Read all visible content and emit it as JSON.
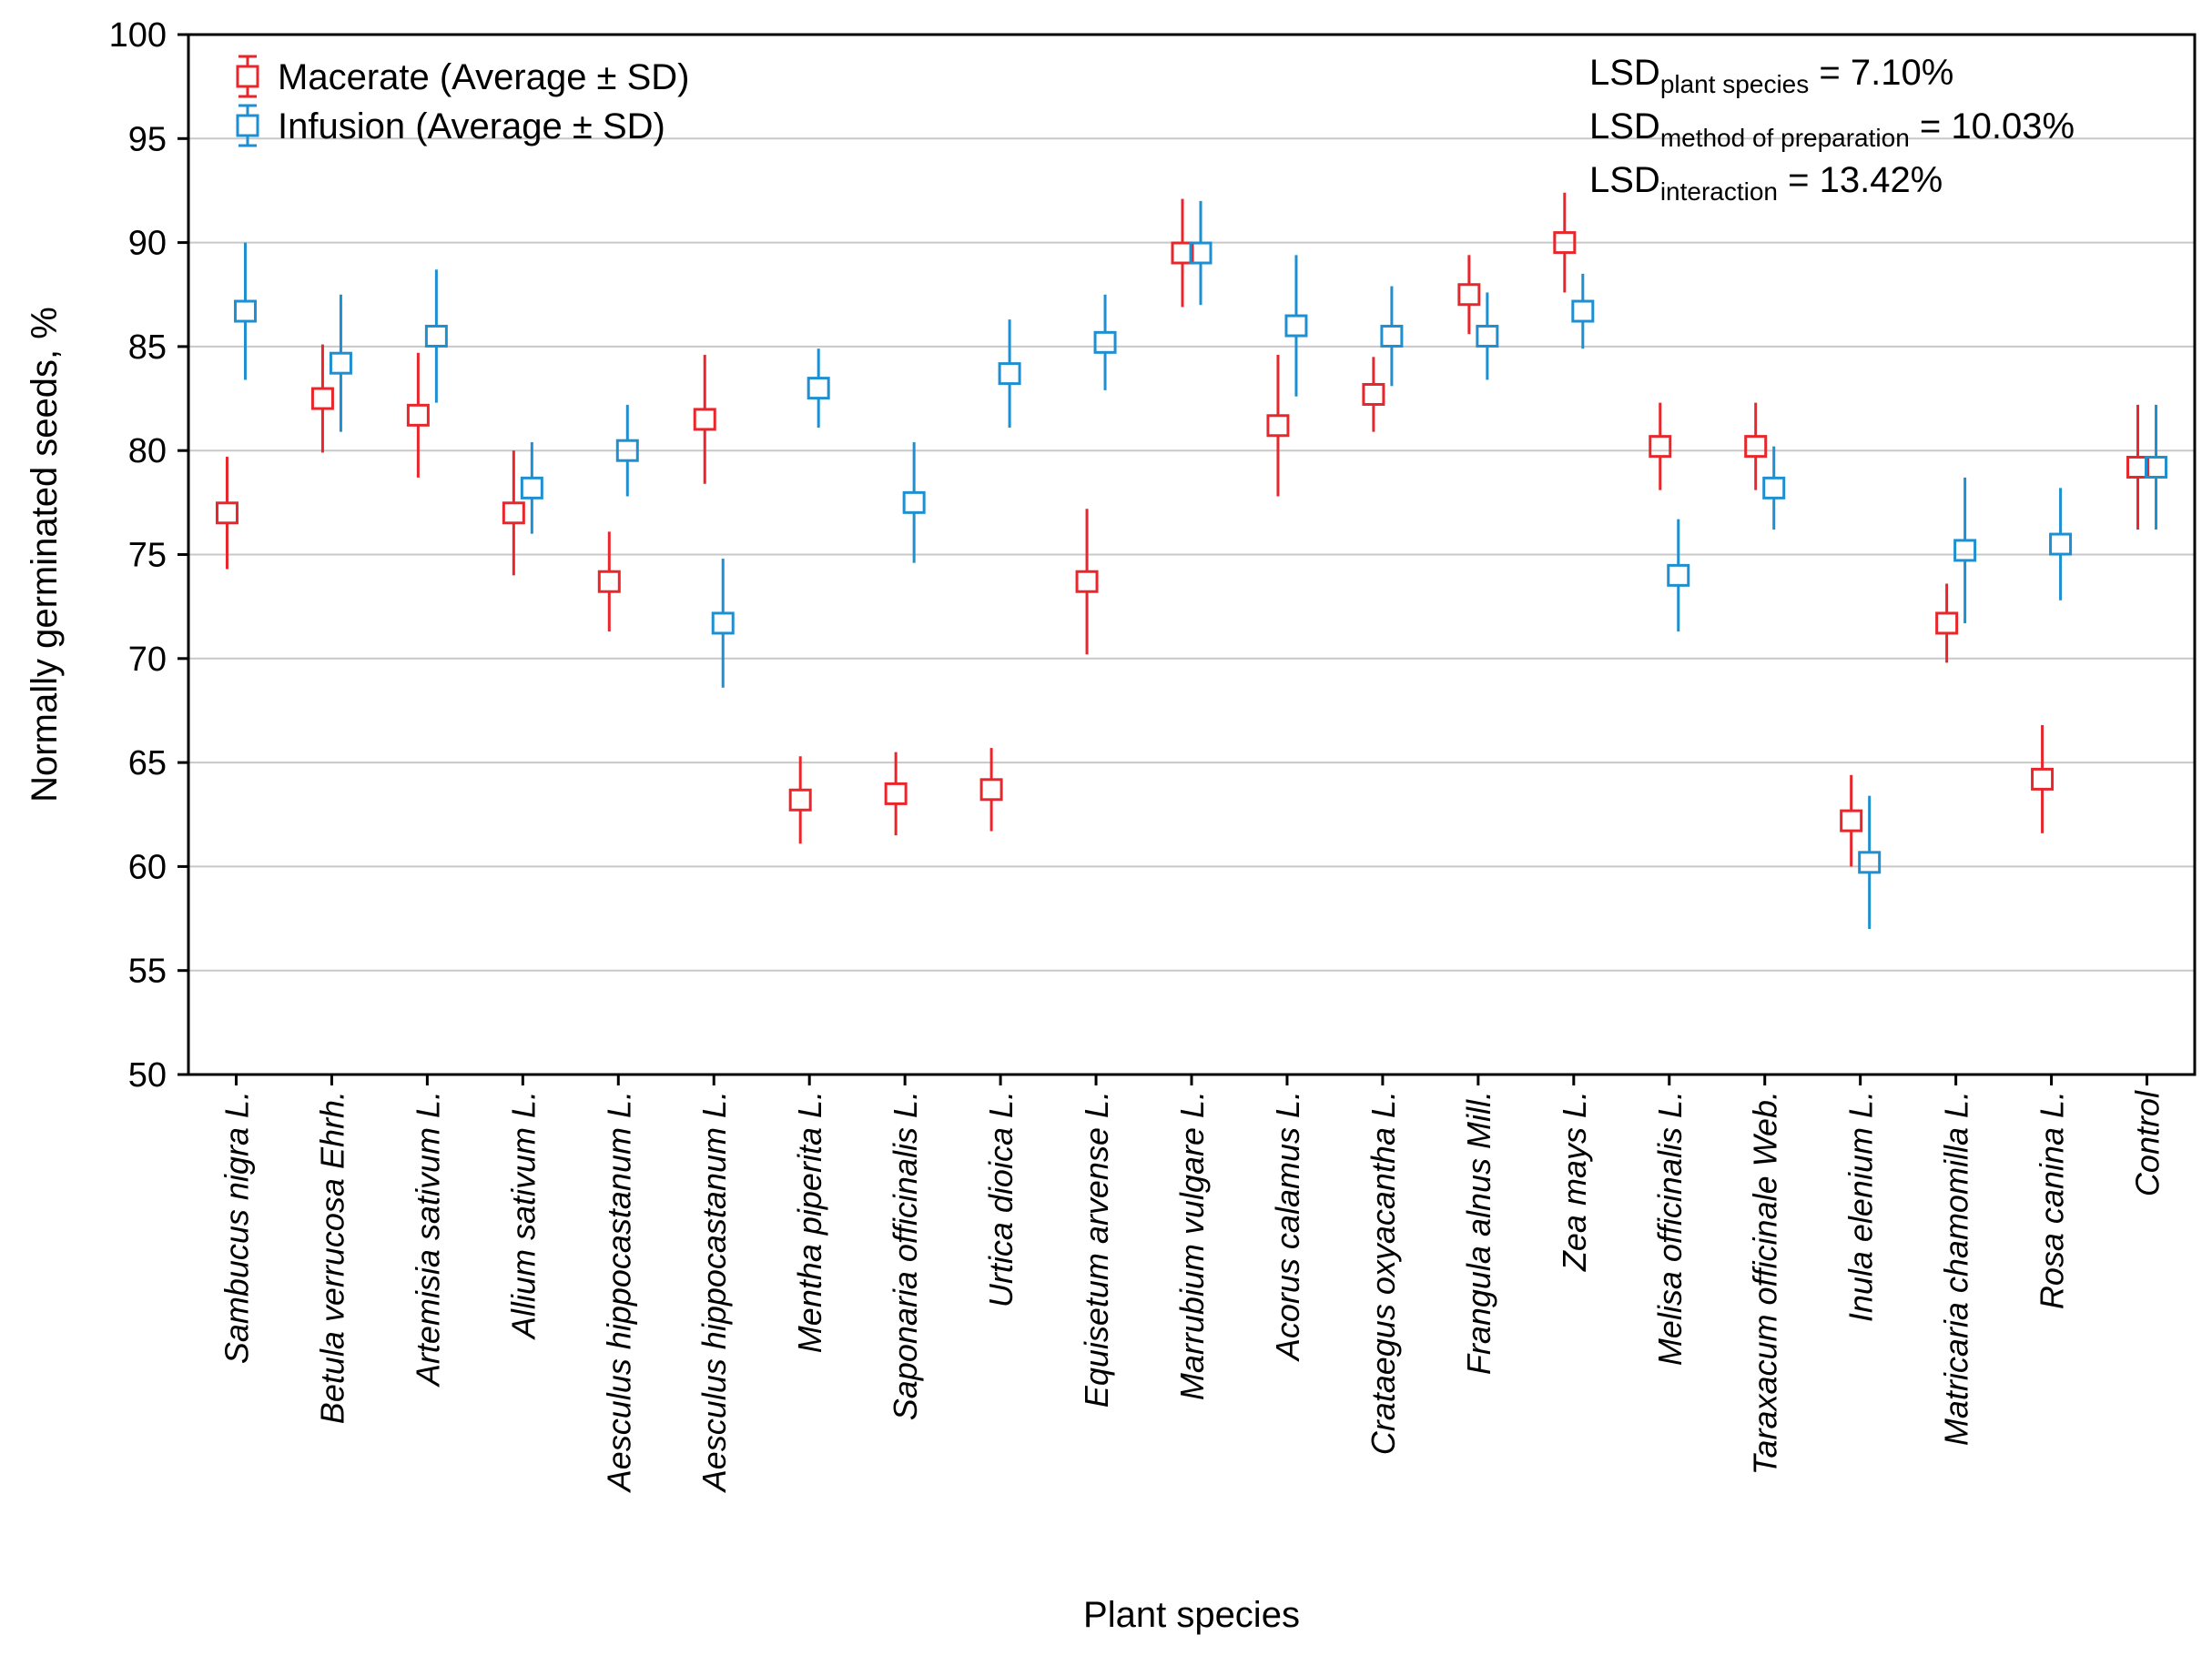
{
  "chart_data": {
    "type": "scatter",
    "subtype": "means-with-error-bars",
    "xlabel": "Plant species",
    "ylabel": "Normally germinated seeds, %",
    "ylim": [
      50,
      100
    ],
    "yticks": [
      50,
      55,
      60,
      65,
      70,
      75,
      80,
      85,
      90,
      95,
      100
    ],
    "grid": true,
    "legend_position": "top-left",
    "categories": [
      "Sambucus nigra L.",
      "Betula verrucosa Ehrh.",
      "Artemisia sativum L.",
      "Allium sativum L.",
      "Aesculus hippocastanum L.",
      "Aesculus hippocastanum L.",
      "Mentha piperita L.",
      "Saponaria officinalis L.",
      "Urtica dioica L.",
      "Equisetum arvense L.",
      "Marrubium vulgare L.",
      "Acorus calamus L.",
      "Crataegus oxyacantha L.",
      "Frangula alnus Mill.",
      "Zea mays L.",
      "Melisa officinalis L.",
      "Taraxacum officinale Web.",
      "Inula elenium L.",
      "Matricaria chamomilla L.",
      "Rosa canina L.",
      "Control"
    ],
    "series": [
      {
        "name": "Macerate (Average ± SD)",
        "color": "#e8262b",
        "values": [
          77.0,
          82.5,
          81.7,
          77.0,
          73.7,
          81.5,
          63.2,
          63.5,
          63.7,
          73.7,
          89.5,
          81.2,
          82.7,
          87.5,
          90.0,
          80.2,
          80.2,
          62.2,
          71.7,
          64.2,
          79.2
        ],
        "sd": [
          2.7,
          2.6,
          3.0,
          3.0,
          2.4,
          3.1,
          2.1,
          2.0,
          2.0,
          3.5,
          2.6,
          3.4,
          1.8,
          1.9,
          2.4,
          2.1,
          2.1,
          2.2,
          1.9,
          2.6,
          3.0
        ]
      },
      {
        "name": "Infusion (Average ± SD)",
        "color": "#1e8fd0",
        "values": [
          86.7,
          84.2,
          85.5,
          78.2,
          80.0,
          71.7,
          83.0,
          77.5,
          83.7,
          85.2,
          89.5,
          86.0,
          85.5,
          85.5,
          86.7,
          74.0,
          78.2,
          60.2,
          null,
          75.5,
          79.2
        ],
        "sd": [
          3.3,
          3.3,
          3.2,
          2.2,
          2.2,
          3.1,
          1.9,
          2.9,
          2.6,
          2.3,
          2.5,
          3.4,
          2.4,
          2.1,
          1.8,
          2.7,
          2.0,
          3.2,
          null,
          2.7,
          3.0
        ]
      }
    ],
    "matricaria_infusion": {
      "value": 75.2,
      "sd": 3.5
    },
    "annotations": {
      "lsd_lines": [
        {
          "base": "LSD",
          "sub": "plant species",
          "rest": " = 7.10%"
        },
        {
          "base": "LSD",
          "sub": "method of preparation",
          "rest": " = 10.03%"
        },
        {
          "base": "LSD",
          "sub": "interaction",
          "rest": " = 13.42%"
        }
      ]
    }
  }
}
